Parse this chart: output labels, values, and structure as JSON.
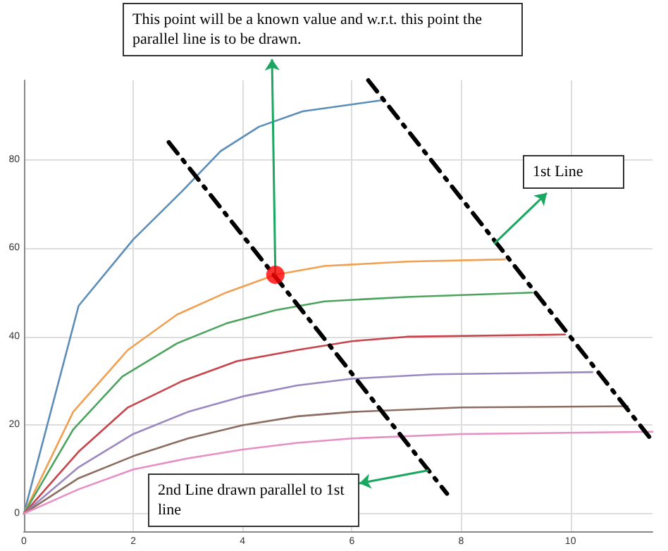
{
  "chart_data": {
    "type": "line",
    "xlim": [
      0,
      11.5
    ],
    "ylim": [
      -4,
      98
    ],
    "xticks": [
      0,
      2,
      4,
      6,
      8,
      10
    ],
    "yticks": [
      0,
      20,
      40,
      60,
      80
    ],
    "grid": true,
    "marker": "none",
    "series": [
      {
        "color": "#5b8db8",
        "x": [
          0,
          1,
          2,
          2.9,
          3.6,
          4.3,
          5.1,
          6.55
        ],
        "values": [
          0,
          47,
          62,
          73,
          82,
          87.5,
          91,
          93.5
        ]
      },
      {
        "color": "#f0a050",
        "x": [
          0,
          0.9,
          1.9,
          2.8,
          3.7,
          4.6,
          5.5,
          7,
          8.8
        ],
        "values": [
          0,
          23,
          37,
          45,
          50,
          54,
          56,
          57,
          57.5
        ]
      },
      {
        "color": "#4ca35e",
        "x": [
          0,
          0.9,
          1.8,
          2.8,
          3.7,
          4.6,
          5.5,
          7,
          9.3
        ],
        "values": [
          0,
          19,
          31,
          38.5,
          43,
          46,
          48,
          49,
          50
        ]
      },
      {
        "color": "#c8434b",
        "x": [
          0,
          1,
          1.9,
          2.9,
          3.9,
          5,
          6,
          7,
          9.9
        ],
        "values": [
          0,
          14,
          24,
          30,
          34.5,
          37,
          39,
          40,
          40.5
        ]
      },
      {
        "color": "#9b88c0",
        "x": [
          0,
          1,
          2,
          3,
          4,
          5,
          6,
          7.5,
          10.4
        ],
        "values": [
          0,
          10.5,
          18,
          23,
          26.5,
          29,
          30.5,
          31.5,
          32
        ]
      },
      {
        "color": "#8c6d62",
        "x": [
          0,
          1,
          2,
          3,
          4,
          5,
          6,
          8,
          11.05
        ],
        "values": [
          0,
          8,
          13,
          17,
          20,
          22,
          23,
          24,
          24.3
        ]
      },
      {
        "color": "#e58fc4",
        "x": [
          0,
          1,
          2,
          3,
          4,
          5,
          6,
          8,
          11.5
        ],
        "values": [
          0,
          5.5,
          10,
          12.5,
          14.5,
          16,
          17,
          18,
          18.5
        ]
      },
      {
        "color": "#000000",
        "line_style": "dashed",
        "x": [
          6.3,
          11.5
        ],
        "values": [
          98,
          16.4
        ]
      },
      {
        "color": "#000000",
        "line_style": "dashed",
        "x": [
          2.65,
          7.74
        ],
        "values": [
          84,
          4.5
        ]
      },
      {
        "type": "scatter",
        "marker": "circle",
        "color": "#ff0000",
        "x": [
          4.6
        ],
        "values": [
          54
        ]
      }
    ],
    "annotations": [
      {
        "text": "This point will be a known value and w.r.t. this point the parallel line is to be drawn.",
        "x": 4.6,
        "y": 54
      },
      {
        "text": "1st Line",
        "x": 8.6,
        "y": 61
      },
      {
        "text": "2nd Line drawn parallel to 1st line",
        "x": 7.4,
        "y": 9.8
      }
    ]
  }
}
